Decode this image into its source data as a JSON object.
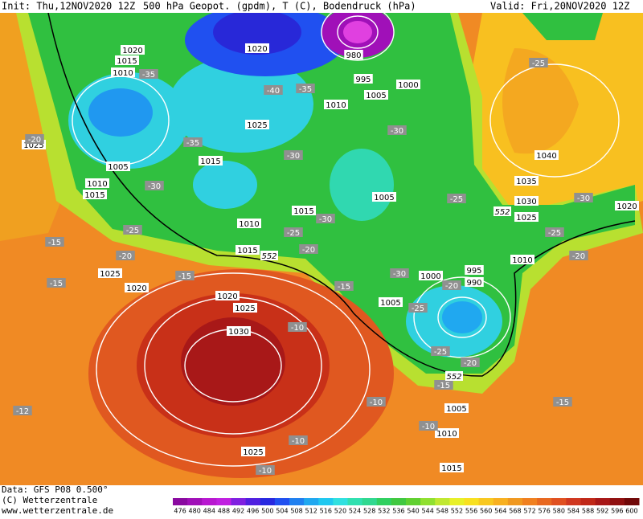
{
  "header": {
    "init": "Init: Thu,12NOV2020 12Z",
    "title": "500 hPa Geopot. (gpdm), T (C), Bodendruck (hPa)",
    "valid": "Valid: Fri,20NOV2020 12Z"
  },
  "map": {
    "pressure_labels": [
      1020,
      1015,
      1010,
      1020,
      980,
      995,
      1005,
      1000,
      1010,
      1025,
      1025,
      1005,
      1015,
      1010,
      1015,
      1005,
      1040,
      1035,
      1030,
      1025,
      1020,
      1015,
      1010,
      1015,
      1010,
      1025,
      1020,
      995,
      990,
      1000,
      1020,
      1025,
      1005,
      1030,
      1005,
      1010,
      1025,
      1015
    ],
    "temperature_labels": [
      -35,
      -40,
      -35,
      -35,
      -30,
      -30,
      -30,
      -25,
      -25,
      -30,
      -30,
      -25,
      -25,
      -20,
      -20,
      -15,
      -15,
      -15,
      -25,
      -20,
      -30,
      -20,
      -15,
      -25,
      -10,
      -25,
      -20,
      -15,
      -15,
      -10,
      -10,
      -10,
      -10,
      -20,
      -12
    ],
    "contour_labels": [
      552,
      552,
      552
    ]
  },
  "colorbar": {
    "values": [
      476,
      480,
      484,
      488,
      492,
      496,
      500,
      504,
      508,
      512,
      516,
      520,
      524,
      528,
      532,
      536,
      540,
      544,
      548,
      552,
      556,
      560,
      564,
      568,
      572,
      576,
      580,
      584,
      588,
      592,
      596,
      600
    ],
    "colors": [
      "#8a0aa0",
      "#a010b8",
      "#b818d0",
      "#c020e0",
      "#8020e0",
      "#5020e0",
      "#2828e0",
      "#2050f0",
      "#2080f0",
      "#20a8f0",
      "#20c8f0",
      "#30e0e0",
      "#30e0b0",
      "#30d890",
      "#30d060",
      "#40c840",
      "#60d030",
      "#90e030",
      "#c0e830",
      "#e8f028",
      "#f8e020",
      "#f8c820",
      "#f8b020",
      "#f09820",
      "#f08020",
      "#e86820",
      "#e05020",
      "#d03820",
      "#c02818",
      "#a81818",
      "#901010",
      "#700808"
    ]
  },
  "footer": {
    "data": "Data: GFS P08 0.500°",
    "copyright": "(C) Wetterzentrale",
    "url": "www.wetterzentrale.de"
  }
}
